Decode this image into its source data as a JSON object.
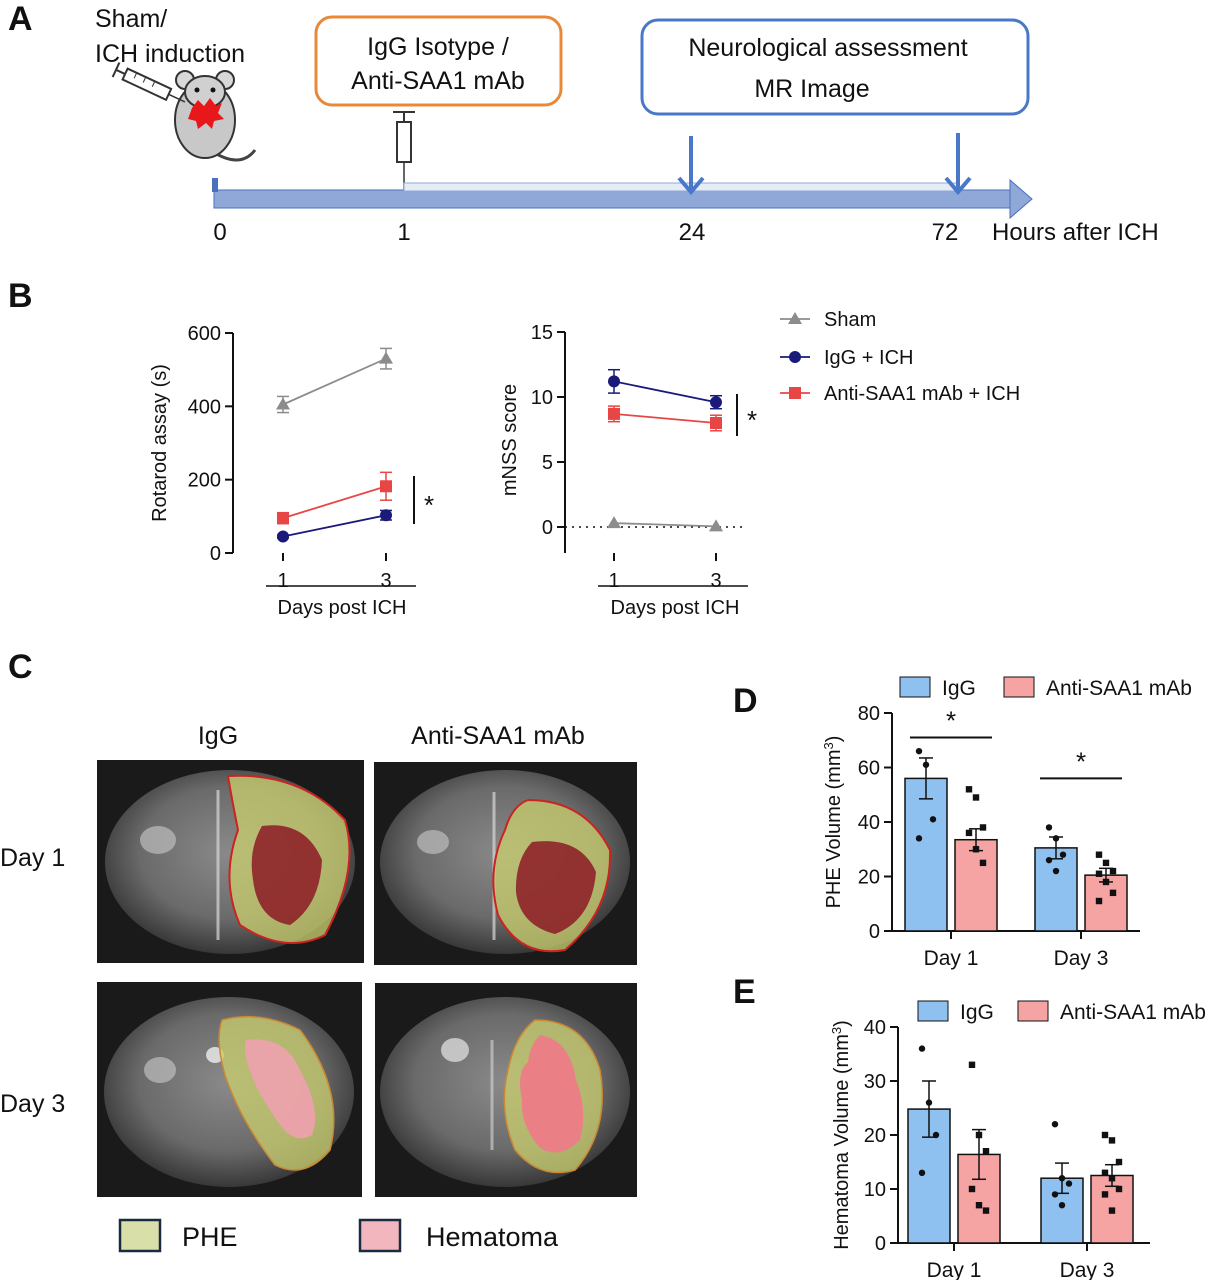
{
  "panels": {
    "a": "A",
    "b": "B",
    "c": "C",
    "d": "D",
    "e": "E"
  },
  "timeline": {
    "induction_label_line1": "Sham/",
    "induction_label_line2": "ICH induction",
    "treatment_line1": "IgG Isotype /",
    "treatment_line2": "Anti-SAA1 mAb",
    "assessment_line1": "Neurological assessment",
    "assessment_line2": "MR Image",
    "ticks": [
      "0",
      "1",
      "24",
      "72"
    ],
    "axis_label": "Hours after ICH",
    "colors": {
      "arrow": "#8fa8d8",
      "arrow_edge": "#4a6fc0",
      "treatment_box": "#e8893a",
      "assessment_box": "#4a78c8"
    }
  },
  "legend_b": {
    "sham": "Sham",
    "igg": "IgG + ICH",
    "anti": "Anti-SAA1 mAb + ICH",
    "colors": {
      "sham": "#8c8c8c",
      "igg": "#1a1a7a",
      "anti": "#e84545"
    }
  },
  "panel_c": {
    "col_igg": "IgG",
    "col_anti": "Anti-SAA1 mAb",
    "row_day1": "Day 1",
    "row_day3": "Day 3",
    "legend_phe": "PHE",
    "legend_hematoma": "Hematoma",
    "colors": {
      "phe": "#c8cc6e",
      "hematoma": "#e8909a",
      "outline": "#cc2222"
    }
  },
  "chart_data": [
    {
      "id": "rotarod",
      "type": "line",
      "x": [
        "1",
        "3"
      ],
      "xlabel": "Days post ICH",
      "ylabel": "Rotarod assay (s)",
      "ylim": [
        0,
        600
      ],
      "yticks": [
        "0",
        "200",
        "400",
        "600"
      ],
      "series": [
        {
          "name": "Sham",
          "values": [
            405,
            530
          ],
          "err": [
            22,
            28
          ],
          "marker": "triangle",
          "color": "#8c8c8c"
        },
        {
          "name": "IgG + ICH",
          "values": [
            45,
            103
          ],
          "err": [
            4,
            13
          ],
          "marker": "circle",
          "color": "#1a1a7a"
        },
        {
          "name": "Anti-SAA1 mAb + ICH",
          "values": [
            95,
            182
          ],
          "err": [
            15,
            38
          ],
          "marker": "square",
          "color": "#e84545"
        }
      ],
      "significance": "*"
    },
    {
      "id": "mnss",
      "type": "line",
      "x": [
        "1",
        "3"
      ],
      "xlabel": "Days post ICH",
      "ylabel": "mNSS score",
      "ylim": [
        0,
        15
      ],
      "yticks": [
        "0",
        "5",
        "10",
        "15"
      ],
      "series": [
        {
          "name": "Sham",
          "values": [
            0.3,
            0.05
          ],
          "err": [
            0,
            0
          ],
          "marker": "triangle",
          "color": "#8c8c8c"
        },
        {
          "name": "IgG + ICH",
          "values": [
            11.2,
            9.6
          ],
          "err": [
            0.9,
            0.5
          ],
          "marker": "circle",
          "color": "#1a1a7a"
        },
        {
          "name": "Anti-SAA1 mAb + ICH",
          "values": [
            8.7,
            8.0
          ],
          "err": [
            0.6,
            0.6
          ],
          "marker": "square",
          "color": "#e84545"
        }
      ],
      "significance": "*"
    },
    {
      "id": "phe",
      "type": "bar",
      "categories": [
        "Day 1",
        "Day 3"
      ],
      "ylabel": "PHE Volume (mm",
      "ylabel_sup": "3",
      "ylabel_close": ")",
      "ylim": [
        0,
        80
      ],
      "yticks": [
        "0",
        "20",
        "40",
        "60",
        "80"
      ],
      "legend": [
        "IgG",
        "Anti-SAA1 mAb"
      ],
      "series": [
        {
          "name": "IgG",
          "values": [
            56,
            30.5
          ],
          "err": [
            7.5,
            4
          ],
          "color": "#8ec1f0",
          "points": [
            [
              66,
              61,
              41,
              34
            ],
            [
              38,
              34,
              28,
              26,
              22
            ]
          ]
        },
        {
          "name": "Anti-SAA1 mAb",
          "values": [
            33.5,
            20.5
          ],
          "err": [
            4,
            2.5
          ],
          "color": "#f5a3a3",
          "points": [
            [
              52,
              49,
              38,
              36,
              30,
              25
            ],
            [
              28,
              25,
              22,
              21,
              18,
              14,
              11
            ]
          ]
        }
      ],
      "significance": [
        "*",
        "*"
      ]
    },
    {
      "id": "hematoma",
      "type": "bar",
      "categories": [
        "Day 1",
        "Day 3"
      ],
      "ylabel": "Hematoma Volume (mm",
      "ylabel_sup": "3",
      "ylabel_close": ")",
      "ylim": [
        0,
        40
      ],
      "yticks": [
        "0",
        "10",
        "20",
        "30",
        "40"
      ],
      "legend": [
        "IgG",
        "Anti-SAA1 mAb"
      ],
      "series": [
        {
          "name": "IgG",
          "values": [
            24.8,
            12
          ],
          "err": [
            5.2,
            2.8
          ],
          "color": "#8ec1f0",
          "points": [
            [
              36,
              26,
              20,
              13
            ],
            [
              22,
              12,
              11,
              9,
              7
            ]
          ]
        },
        {
          "name": "Anti-SAA1 mAb",
          "values": [
            16.4,
            12.5
          ],
          "err": [
            4.6,
            2
          ],
          "color": "#f5a3a3",
          "points": [
            [
              33,
              20,
              17,
              10,
              7,
              6
            ],
            [
              20,
              19,
              15,
              13,
              12,
              10,
              9,
              6
            ]
          ]
        }
      ]
    }
  ]
}
